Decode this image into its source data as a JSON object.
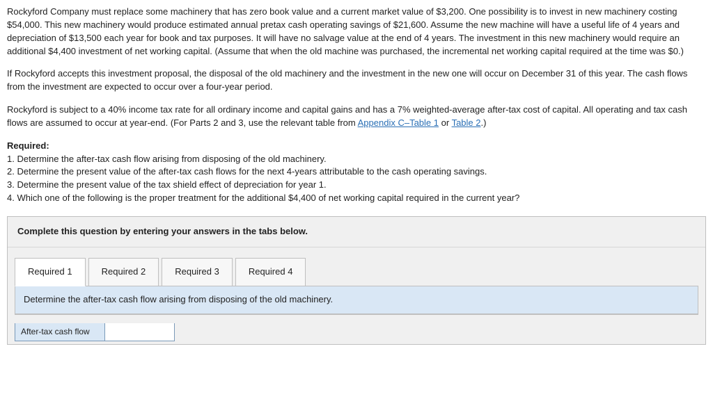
{
  "problem": {
    "p1": "Rockyford Company must replace some machinery that has zero book value and a current market value of $3,200. One possibility is to invest in new machinery costing $54,000. This new machinery would produce estimated annual pretax cash operating savings of $21,600. Assume the new machine will have a useful life of 4 years and depreciation of $13,500 each year for book and tax purposes. It will have no salvage value at the end of 4 years. The investment in this new machinery would require an additional $4,400 investment of net working capital. (Assume that when the old machine was purchased, the incremental net working capital required at the time was $0.)",
    "p2": "If Rockyford accepts this investment proposal, the disposal of the old machinery and the investment in the new one will occur on December 31 of this year. The cash flows from the investment are expected to occur over a four-year period.",
    "p3_prefix": "Rockyford is subject to a 40% income tax rate for all ordinary income and capital gains and has a 7% weighted-average after-tax cost of capital. All operating and tax cash flows are assumed to occur at year-end. (For Parts 2 and 3, use the relevant table from ",
    "p3_link1": "Appendix C–Table 1",
    "p3_mid": " or ",
    "p3_link2": "Table 2",
    "p3_suffix": ".)"
  },
  "required": {
    "heading": "Required:",
    "items": [
      "1. Determine the after-tax cash flow arising from disposing of the old machinery.",
      "2. Determine the present value of the after-tax cash flows for the next 4-years attributable to the cash operating savings.",
      "3. Determine the present value of the tax shield effect of depreciation for year 1.",
      "4. Which one of the following is the proper treatment for the additional $4,400 of net working capital required in the current year?"
    ]
  },
  "answer_area": {
    "instruction": "Complete this question by entering your answers in the tabs below.",
    "tabs": [
      {
        "label": "Required 1"
      },
      {
        "label": "Required 2"
      },
      {
        "label": "Required 3"
      },
      {
        "label": "Required 4"
      }
    ],
    "active_tab_text": "Determine the after-tax cash flow arising from disposing of the old machinery.",
    "row_label": "After-tax cash flow",
    "input_value": ""
  },
  "colors": {
    "link": "#2a6fb5",
    "panel_bg": "#f0f0f0",
    "panel_border": "#bfbfbf",
    "tab_content_bg": "#d9e7f5",
    "cell_border": "#7a99b8"
  }
}
